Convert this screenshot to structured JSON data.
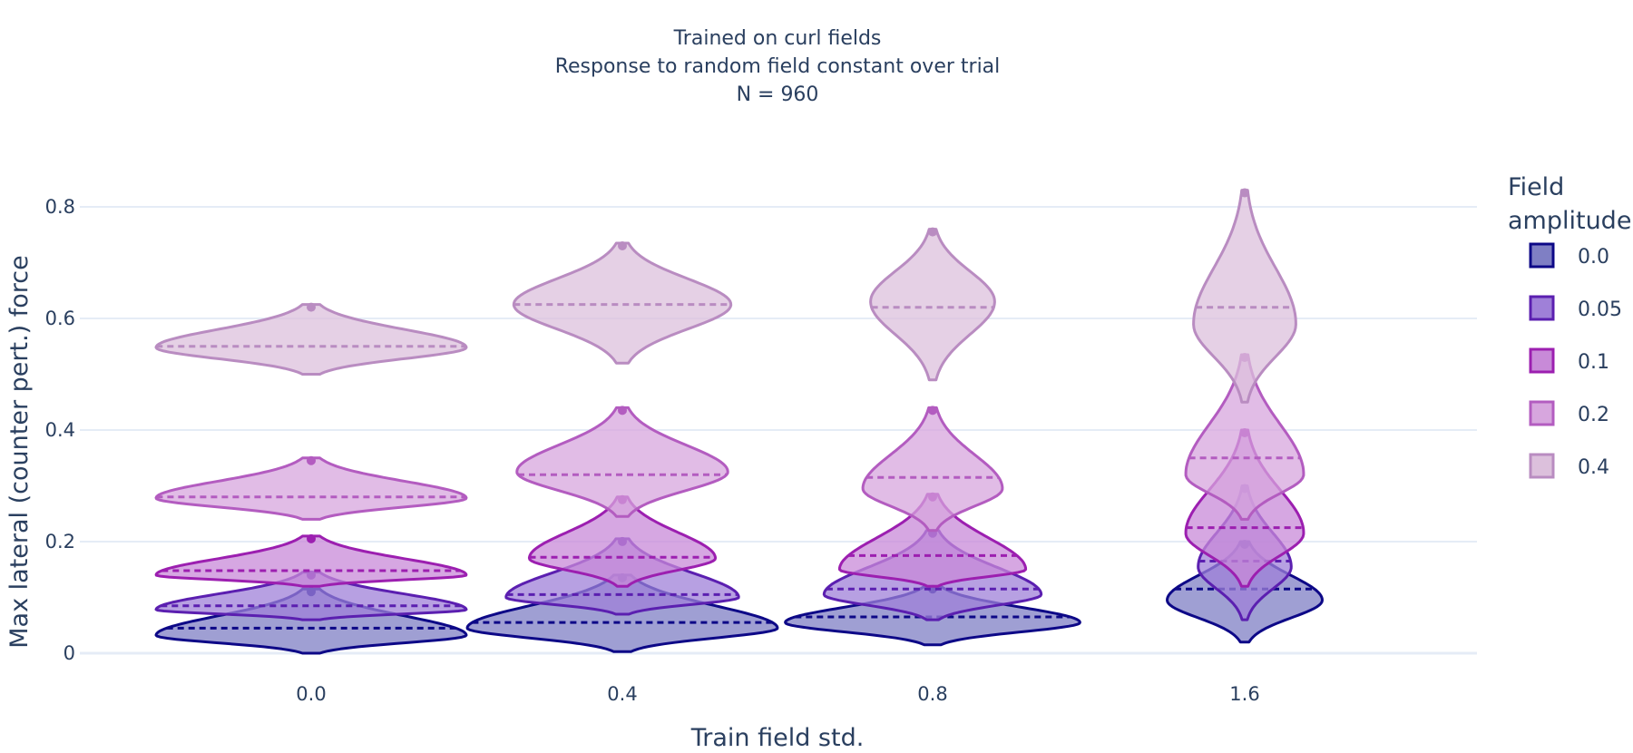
{
  "chart_data": {
    "type": "violin",
    "title_lines": [
      "Trained on curl fields",
      "Response to random field constant over trial",
      "N = 960"
    ],
    "xlabel": "Train field std.",
    "ylabel": "Max lateral (counter pert.) force",
    "categories": [
      "0.0",
      "0.4",
      "0.8",
      "1.6"
    ],
    "y_ticks": [
      0,
      0.2,
      0.4,
      0.6,
      0.8
    ],
    "y_tick_labels": [
      "0",
      "0.2",
      "0.4",
      "0.6",
      "0.8"
    ],
    "ylim": [
      -0.03,
      0.86
    ],
    "grid": "horizontal",
    "legend": {
      "title_lines": [
        "Field",
        "amplitude"
      ],
      "placement": "right"
    },
    "series": [
      {
        "name": "0.0",
        "line_color": "#0d0887",
        "fill_color": "#7f7fc4",
        "violins": [
          {
            "category": "0.0",
            "mean": 0.045,
            "min": 0.0,
            "max": 0.115,
            "peak": 0.032,
            "width": 1.0
          },
          {
            "category": "0.4",
            "mean": 0.055,
            "min": 0.003,
            "max": 0.14,
            "peak": 0.045,
            "width": 1.0
          },
          {
            "category": "0.8",
            "mean": 0.065,
            "min": 0.015,
            "max": 0.12,
            "peak": 0.055,
            "width": 0.95
          },
          {
            "category": "1.6",
            "mean": 0.115,
            "min": 0.02,
            "max": 0.2,
            "peak": 0.095,
            "width": 0.5
          }
        ]
      },
      {
        "name": "0.05",
        "line_color": "#5b1fb0",
        "fill_color": "#9f80d8",
        "violins": [
          {
            "category": "0.0",
            "mean": 0.085,
            "min": 0.06,
            "max": 0.145,
            "peak": 0.078,
            "width": 1.0
          },
          {
            "category": "0.4",
            "mean": 0.105,
            "min": 0.07,
            "max": 0.205,
            "peak": 0.1,
            "width": 0.75
          },
          {
            "category": "0.8",
            "mean": 0.115,
            "min": 0.06,
            "max": 0.22,
            "peak": 0.105,
            "width": 0.7
          },
          {
            "category": "1.6",
            "mean": 0.165,
            "min": 0.06,
            "max": 0.3,
            "peak": 0.155,
            "width": 0.3
          }
        ]
      },
      {
        "name": "0.1",
        "line_color": "#9c1fb0",
        "fill_color": "#c88ad8",
        "violins": [
          {
            "category": "0.0",
            "mean": 0.148,
            "min": 0.12,
            "max": 0.21,
            "peak": 0.14,
            "width": 1.0
          },
          {
            "category": "0.4",
            "mean": 0.172,
            "min": 0.12,
            "max": 0.28,
            "peak": 0.17,
            "width": 0.6
          },
          {
            "category": "0.8",
            "mean": 0.175,
            "min": 0.12,
            "max": 0.285,
            "peak": 0.15,
            "width": 0.6
          },
          {
            "category": "1.6",
            "mean": 0.225,
            "min": 0.12,
            "max": 0.4,
            "peak": 0.215,
            "width": 0.38
          }
        ]
      },
      {
        "name": "0.2",
        "line_color": "#b35cc0",
        "fill_color": "#d7a6de",
        "violins": [
          {
            "category": "0.0",
            "mean": 0.28,
            "min": 0.24,
            "max": 0.35,
            "peak": 0.278,
            "width": 1.0
          },
          {
            "category": "0.4",
            "mean": 0.32,
            "min": 0.245,
            "max": 0.44,
            "peak": 0.325,
            "width": 0.68
          },
          {
            "category": "0.8",
            "mean": 0.315,
            "min": 0.22,
            "max": 0.44,
            "peak": 0.295,
            "width": 0.45
          },
          {
            "category": "1.6",
            "mean": 0.35,
            "min": 0.24,
            "max": 0.535,
            "peak": 0.32,
            "width": 0.38
          }
        ]
      },
      {
        "name": "0.4",
        "line_color": "#b98cc1",
        "fill_color": "#dcc0dc",
        "violins": [
          {
            "category": "0.0",
            "mean": 0.55,
            "min": 0.5,
            "max": 0.625,
            "peak": 0.548,
            "width": 1.0
          },
          {
            "category": "0.4",
            "mean": 0.625,
            "min": 0.52,
            "max": 0.735,
            "peak": 0.625,
            "width": 0.7
          },
          {
            "category": "0.8",
            "mean": 0.62,
            "min": 0.49,
            "max": 0.76,
            "peak": 0.63,
            "width": 0.4
          },
          {
            "category": "1.6",
            "mean": 0.62,
            "min": 0.45,
            "max": 0.83,
            "peak": 0.59,
            "width": 0.33
          }
        ]
      }
    ]
  }
}
